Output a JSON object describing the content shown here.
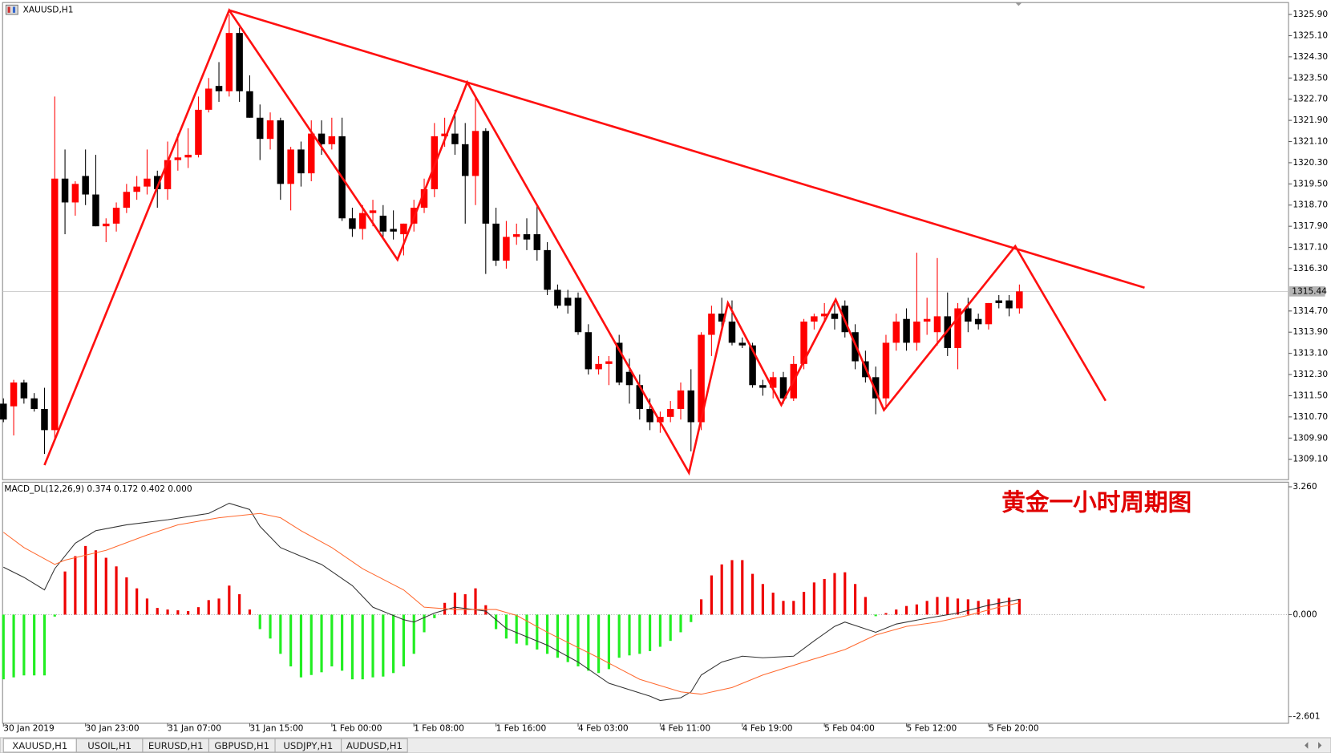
{
  "chart_data": [
    {
      "type": "candlestick",
      "title": "XAUUSD,H1",
      "up_color": "#ff0000",
      "down_color": "#000000",
      "open": [
        1311.2,
        1311.1,
        1312.0,
        1311.4,
        1311.0,
        1310.2,
        1319.7,
        1318.8,
        1319.8,
        1319.1,
        1317.9,
        1318.0,
        1318.6,
        1319.2,
        1319.4,
        1319.8,
        1319.3,
        1320.4,
        1320.5,
        1320.6,
        1322.3,
        1323.2,
        1323.0,
        1325.2,
        1323.0,
        1322.0,
        1321.2,
        1321.9,
        1319.5,
        1320.8,
        1319.9,
        1321.4,
        1321.0,
        1321.3,
        1318.2,
        1317.8,
        1318.4,
        1318.3,
        1317.8,
        1317.6,
        1318.0,
        1318.6,
        1319.3,
        1321.3,
        1321.4,
        1321.0,
        1319.8,
        1321.5,
        1318.0,
        1316.6,
        1317.5,
        1317.6,
        1317.6,
        1317.0,
        1315.5,
        1315.2,
        1315.2,
        1313.9,
        1312.5,
        1312.7,
        1313.5,
        1312.4,
        1311.9,
        1311.0,
        1310.5,
        1310.7,
        1311.0,
        1311.7,
        1310.5,
        1313.8,
        1314.6,
        1314.3,
        1313.5,
        1313.4,
        1311.9,
        1311.8,
        1312.2,
        1311.4,
        1312.7,
        1314.3,
        1314.5,
        1314.6,
        1314.9,
        1313.9,
        1312.8,
        1312.2,
        1311.4,
        1313.5,
        1314.4,
        1313.5,
        1314.3,
        1313.9,
        1314.5,
        1313.3,
        1314.8,
        1314.4,
        1314.2,
        1315.1,
        1315.1,
        1314.8
      ],
      "high": [
        1311.4,
        1312.1,
        1312.1,
        1311.6,
        1311.8,
        1322.8,
        1320.8,
        1319.6,
        1320.8,
        1320.6,
        1318.2,
        1318.8,
        1319.5,
        1319.8,
        1320.8,
        1320.0,
        1321.1,
        1321.4,
        1321.6,
        1322.8,
        1323.5,
        1324.1,
        1325.9,
        1325.4,
        1323.6,
        1322.5,
        1322.2,
        1322.0,
        1320.9,
        1321.1,
        1321.9,
        1321.9,
        1322.0,
        1322.0,
        1318.6,
        1318.7,
        1318.9,
        1318.7,
        1318.5,
        1318.0,
        1318.9,
        1319.7,
        1321.8,
        1322.0,
        1322.3,
        1321.8,
        1322.8,
        1321.6,
        1318.6,
        1318.1,
        1318.0,
        1318.2,
        1318.7,
        1317.3,
        1315.7,
        1315.5,
        1315.4,
        1314.2,
        1313.0,
        1313.0,
        1313.8,
        1312.9,
        1312.3,
        1311.4,
        1310.9,
        1311.3,
        1312.0,
        1312.5,
        1313.9,
        1314.9,
        1315.2,
        1315.1,
        1313.7,
        1313.5,
        1312.1,
        1312.4,
        1312.4,
        1313.0,
        1314.4,
        1314.6,
        1315.0,
        1315.1,
        1315.1,
        1314.2,
        1313.2,
        1312.6,
        1313.8,
        1314.6,
        1314.8,
        1316.9,
        1315.2,
        1316.7,
        1315.4,
        1315.0,
        1315.2,
        1314.6,
        1315.0,
        1315.3,
        1315.3,
        1315.7
      ],
      "low": [
        1310.5,
        1310.0,
        1311.2,
        1310.9,
        1309.3,
        1309.9,
        1317.6,
        1318.3,
        1318.7,
        1317.9,
        1317.3,
        1317.7,
        1318.4,
        1318.9,
        1319.1,
        1318.6,
        1318.9,
        1320.0,
        1320.1,
        1320.5,
        1322.2,
        1322.6,
        1322.8,
        1322.6,
        1322.0,
        1320.4,
        1320.8,
        1318.9,
        1318.5,
        1319.4,
        1319.6,
        1320.6,
        1320.8,
        1318.1,
        1317.5,
        1317.4,
        1317.9,
        1317.5,
        1317.4,
        1316.8,
        1317.7,
        1318.4,
        1319.0,
        1320.9,
        1320.6,
        1318.0,
        1318.7,
        1316.1,
        1316.4,
        1316.3,
        1317.2,
        1317.0,
        1316.6,
        1315.3,
        1314.8,
        1314.6,
        1313.8,
        1312.3,
        1312.3,
        1311.9,
        1311.9,
        1311.2,
        1310.6,
        1310.2,
        1310.1,
        1310.5,
        1310.6,
        1309.4,
        1310.2,
        1313.0,
        1313.9,
        1313.4,
        1313.3,
        1311.8,
        1311.5,
        1311.4,
        1311.2,
        1311.3,
        1312.5,
        1314.0,
        1314.3,
        1314.0,
        1313.7,
        1312.5,
        1312.0,
        1310.8,
        1311.0,
        1313.2,
        1313.2,
        1313.2,
        1313.8,
        1313.4,
        1313.0,
        1312.5,
        1313.9,
        1314.0,
        1314.0,
        1314.8,
        1314.5,
        1314.6
      ],
      "close": [
        1310.6,
        1312.0,
        1311.4,
        1311.0,
        1310.2,
        1319.7,
        1318.8,
        1319.5,
        1319.1,
        1317.9,
        1318.0,
        1318.6,
        1319.2,
        1319.4,
        1319.7,
        1319.3,
        1320.4,
        1320.5,
        1320.6,
        1322.3,
        1323.1,
        1323.0,
        1325.2,
        1323.0,
        1322.0,
        1321.2,
        1321.9,
        1319.5,
        1320.8,
        1319.9,
        1321.4,
        1321.0,
        1321.3,
        1318.2,
        1317.8,
        1318.4,
        1318.5,
        1317.7,
        1317.7,
        1318.0,
        1318.6,
        1319.3,
        1321.3,
        1321.4,
        1321.0,
        1319.8,
        1321.5,
        1318.0,
        1316.6,
        1317.5,
        1317.6,
        1317.4,
        1317.0,
        1315.5,
        1314.9,
        1314.9,
        1313.9,
        1312.5,
        1312.7,
        1312.8,
        1312.0,
        1311.9,
        1311.0,
        1310.5,
        1310.7,
        1311.0,
        1311.7,
        1310.5,
        1313.8,
        1314.6,
        1314.3,
        1313.5,
        1313.4,
        1311.9,
        1311.8,
        1312.2,
        1311.4,
        1312.7,
        1314.3,
        1314.5,
        1314.6,
        1314.4,
        1313.9,
        1312.8,
        1312.2,
        1311.4,
        1313.5,
        1314.3,
        1313.5,
        1314.3,
        1314.4,
        1314.5,
        1313.3,
        1314.8,
        1314.3,
        1314.2,
        1315.0,
        1315.0,
        1314.8,
        1315.44
      ],
      "last_price": 1315.44,
      "ylim": [
        1308.33,
        1326.35
      ],
      "yticks": [
        {
          "value": 1325.9,
          "label": "1325.90"
        },
        {
          "value": 1325.1,
          "label": "1325.10"
        },
        {
          "value": 1324.3,
          "label": "1324.30"
        },
        {
          "value": 1323.5,
          "label": "1323.50"
        },
        {
          "value": 1322.7,
          "label": "1322.70"
        },
        {
          "value": 1321.9,
          "label": "1321.90"
        },
        {
          "value": 1321.1,
          "label": "1321.10"
        },
        {
          "value": 1320.3,
          "label": "1320.30"
        },
        {
          "value": 1319.5,
          "label": "1319.50"
        },
        {
          "value": 1318.7,
          "label": "1318.70"
        },
        {
          "value": 1317.9,
          "label": "1317.90"
        },
        {
          "value": 1317.1,
          "label": "1317.10"
        },
        {
          "value": 1316.3,
          "label": "1316.30"
        },
        {
          "value": 1314.7,
          "label": "1314.70"
        },
        {
          "value": 1313.9,
          "label": "1313.90"
        },
        {
          "value": 1313.1,
          "label": "1313.10"
        },
        {
          "value": 1312.3,
          "label": "1312.30"
        },
        {
          "value": 1311.5,
          "label": "1311.50"
        },
        {
          "value": 1310.7,
          "label": "1310.70"
        },
        {
          "value": 1309.9,
          "label": "1309.90"
        },
        {
          "value": 1309.1,
          "label": "1309.10"
        }
      ],
      "xticks": [
        {
          "value": 0,
          "label": "30 Jan 2019"
        },
        {
          "value": 8,
          "label": "30 Jan 23:00"
        },
        {
          "value": 16,
          "label": "31 Jan 07:00"
        },
        {
          "value": 24,
          "label": "31 Jan 15:00"
        },
        {
          "value": 32,
          "label": "1 Feb 00:00"
        },
        {
          "value": 40,
          "label": "1 Feb 08:00"
        },
        {
          "value": 48,
          "label": "1 Feb 16:00"
        },
        {
          "value": 56,
          "label": "4 Feb 03:00"
        },
        {
          "value": 64,
          "label": "4 Feb 11:00"
        },
        {
          "value": 72,
          "label": "4 Feb 19:00"
        },
        {
          "value": 80,
          "label": "5 Feb 04:00"
        },
        {
          "value": 88,
          "label": "5 Feb 12:00"
        },
        {
          "value": 96,
          "label": "5 Feb 20:00"
        }
      ],
      "lines": [
        {
          "color": "#ff1010",
          "x": [
            4,
            22,
            38.4,
            45.2,
            66.8,
            70.6,
            75.8,
            81.1,
            85.8,
            98.6,
            107.4
          ],
          "values": [
            1308.88,
            1326.06,
            1316.64,
            1323.34,
            1308.59,
            1315.0,
            1311.15,
            1315.13,
            1310.96,
            1317.15,
            1311.31
          ]
        },
        {
          "color": "#ff1010",
          "x": [
            22,
            111.2
          ],
          "values": [
            1326.06,
            1315.58
          ]
        }
      ]
    },
    {
      "type": "macd",
      "title": "MACD_DL(12,26,9) 0.374 0.172 0.402 0.000",
      "annotation": "黄金一小时周期图",
      "ylim": [
        -2.771,
        3.377
      ],
      "yticks": [
        {
          "value": 3.26,
          "label": "3.260"
        },
        {
          "value": 0,
          "label": "0.000"
        },
        {
          "value": -2.601,
          "label": "-2.601"
        }
      ],
      "positive_color": "#ee0000",
      "negative_color": "#22ee22",
      "histogram": [
        -1.65,
        -1.6,
        -1.55,
        -1.55,
        -1.55,
        -0.05,
        1.1,
        1.49,
        1.75,
        1.64,
        1.45,
        1.23,
        0.95,
        0.67,
        0.41,
        0.17,
        0.13,
        0.11,
        0.09,
        0.19,
        0.37,
        0.41,
        0.74,
        0.52,
        0.13,
        -0.37,
        -0.61,
        -1.0,
        -1.32,
        -1.6,
        -1.54,
        -1.47,
        -1.32,
        -1.43,
        -1.65,
        -1.65,
        -1.6,
        -1.58,
        -1.49,
        -1.32,
        -1.0,
        -0.45,
        -0.09,
        0.3,
        0.56,
        0.52,
        0.67,
        0.24,
        -0.37,
        -0.61,
        -0.74,
        -0.78,
        -0.89,
        -1.0,
        -1.1,
        -1.21,
        -1.32,
        -1.43,
        -1.49,
        -1.39,
        -1.1,
        -1.04,
        -1.0,
        -0.93,
        -0.82,
        -0.67,
        -0.45,
        -0.19,
        0.39,
        1.0,
        1.28,
        1.39,
        1.39,
        1.04,
        0.78,
        0.56,
        0.35,
        0.35,
        0.58,
        0.82,
        0.91,
        1.06,
        1.08,
        0.78,
        0.45,
        -0.04,
        0.04,
        0.13,
        0.22,
        0.26,
        0.35,
        0.45,
        0.45,
        0.41,
        0.39,
        0.35,
        0.39,
        0.41,
        0.43,
        0.4
      ],
      "lines": [
        {
          "color": "#333333",
          "x": [
            0,
            2,
            4,
            5,
            7,
            9,
            12,
            16,
            20,
            22,
            24,
            25,
            27,
            29,
            31,
            34,
            36,
            39,
            40,
            42,
            44,
            47,
            49,
            53,
            56,
            59,
            63,
            64,
            66,
            67,
            68,
            70,
            72,
            74,
            77,
            79,
            81,
            82,
            85,
            87,
            90,
            93,
            96,
            99
          ],
          "values": [
            1.21,
            0.95,
            0.63,
            1.17,
            1.82,
            2.14,
            2.29,
            2.42,
            2.58,
            2.84,
            2.68,
            2.25,
            1.71,
            1.49,
            1.28,
            0.74,
            0.19,
            -0.13,
            -0.19,
            0.04,
            0.19,
            0.09,
            -0.35,
            -0.78,
            -1.21,
            -1.75,
            -2.08,
            -2.19,
            -2.12,
            -1.97,
            -1.54,
            -1.21,
            -1.06,
            -1.1,
            -1.06,
            -0.67,
            -0.3,
            -0.19,
            -0.45,
            -0.24,
            -0.09,
            0.04,
            0.24,
            0.39
          ]
        },
        {
          "color": "#ff6a30",
          "x": [
            0,
            2,
            5,
            6,
            10,
            14,
            17,
            21,
            25,
            27,
            29,
            32,
            35,
            39,
            41,
            44,
            48,
            50,
            53,
            58,
            62,
            66,
            68,
            71,
            74,
            78,
            82,
            85,
            88,
            91,
            94,
            97,
            99
          ],
          "values": [
            2.1,
            1.71,
            1.28,
            1.39,
            1.64,
            2.03,
            2.29,
            2.47,
            2.58,
            2.47,
            2.14,
            1.71,
            1.17,
            0.63,
            0.19,
            0.13,
            0.13,
            -0.02,
            -0.45,
            -1.1,
            -1.65,
            -1.97,
            -2.03,
            -1.86,
            -1.54,
            -1.21,
            -0.89,
            -0.52,
            -0.3,
            -0.19,
            -0.02,
            0.19,
            0.3
          ]
        }
      ]
    }
  ],
  "tabs": [
    "XAUUSD,H1",
    "USOIL,H1",
    "EURUSD,H1",
    "GBPUSD,H1",
    "USDJPY,H1",
    "AUDUSD,H1"
  ]
}
